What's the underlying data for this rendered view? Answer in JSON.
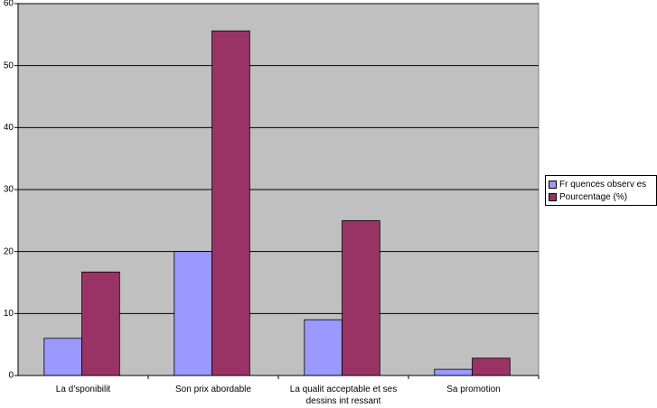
{
  "chart_data": {
    "type": "bar",
    "categories": [
      "La d’sponibilit",
      "Son prix abordable",
      "La qualit  acceptable et ses dessins int  ressant",
      "Sa promotion"
    ],
    "series": [
      {
        "name": "Fr  quences observ  es",
        "color": "#9999ff",
        "values": [
          6,
          20,
          9,
          1
        ]
      },
      {
        "name": "Pourcentage (%)",
        "color": "#993366",
        "values": [
          16.7,
          55.6,
          25,
          2.8
        ]
      }
    ],
    "ylim": [
      0,
      60
    ],
    "yticks": [
      0,
      10,
      20,
      30,
      40,
      50,
      60
    ],
    "grid": true,
    "plot_background": "#c0c0c0"
  }
}
